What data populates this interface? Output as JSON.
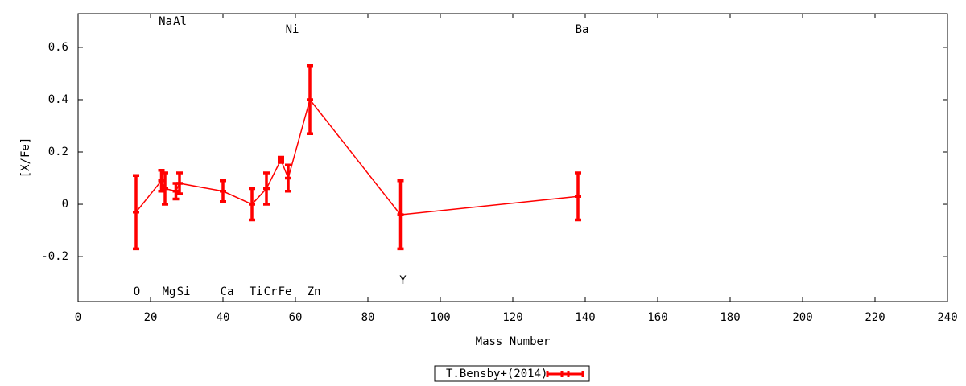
{
  "chart_data": {
    "type": "errorline",
    "xlabel": "Mass Number",
    "ylabel": "[X/Fe]",
    "xlim": [
      0,
      240
    ],
    "ylim": [
      -0.372,
      0.729
    ],
    "xticks": [
      0,
      20,
      40,
      60,
      80,
      100,
      120,
      140,
      160,
      180,
      200,
      220,
      240
    ],
    "yticks": [
      -0.2,
      0,
      0.2,
      0.4,
      0.6
    ],
    "legend": "bottom",
    "x": [
      16,
      23,
      24,
      27,
      28,
      40,
      48,
      52,
      56,
      58,
      64,
      89,
      138
    ],
    "point_labels": [
      "O",
      "Na",
      "Mg",
      "Al",
      "Si",
      "Ca",
      "Ti",
      "Cr",
      "Fe",
      "Ni",
      "Zn",
      "Y",
      "Ba"
    ],
    "series": [
      {
        "name": "T.Bensby+(2014)",
        "color": "#ff0000",
        "values": [
          -0.03,
          0.09,
          0.06,
          0.05,
          0.08,
          0.05,
          0.0,
          0.06,
          0.17,
          0.1,
          0.4,
          -0.04,
          0.03
        ],
        "errors": [
          0.14,
          0.04,
          0.06,
          0.03,
          0.04,
          0.04,
          0.06,
          0.06,
          0.01,
          0.05,
          0.13,
          0.13,
          0.09
        ]
      }
    ]
  }
}
